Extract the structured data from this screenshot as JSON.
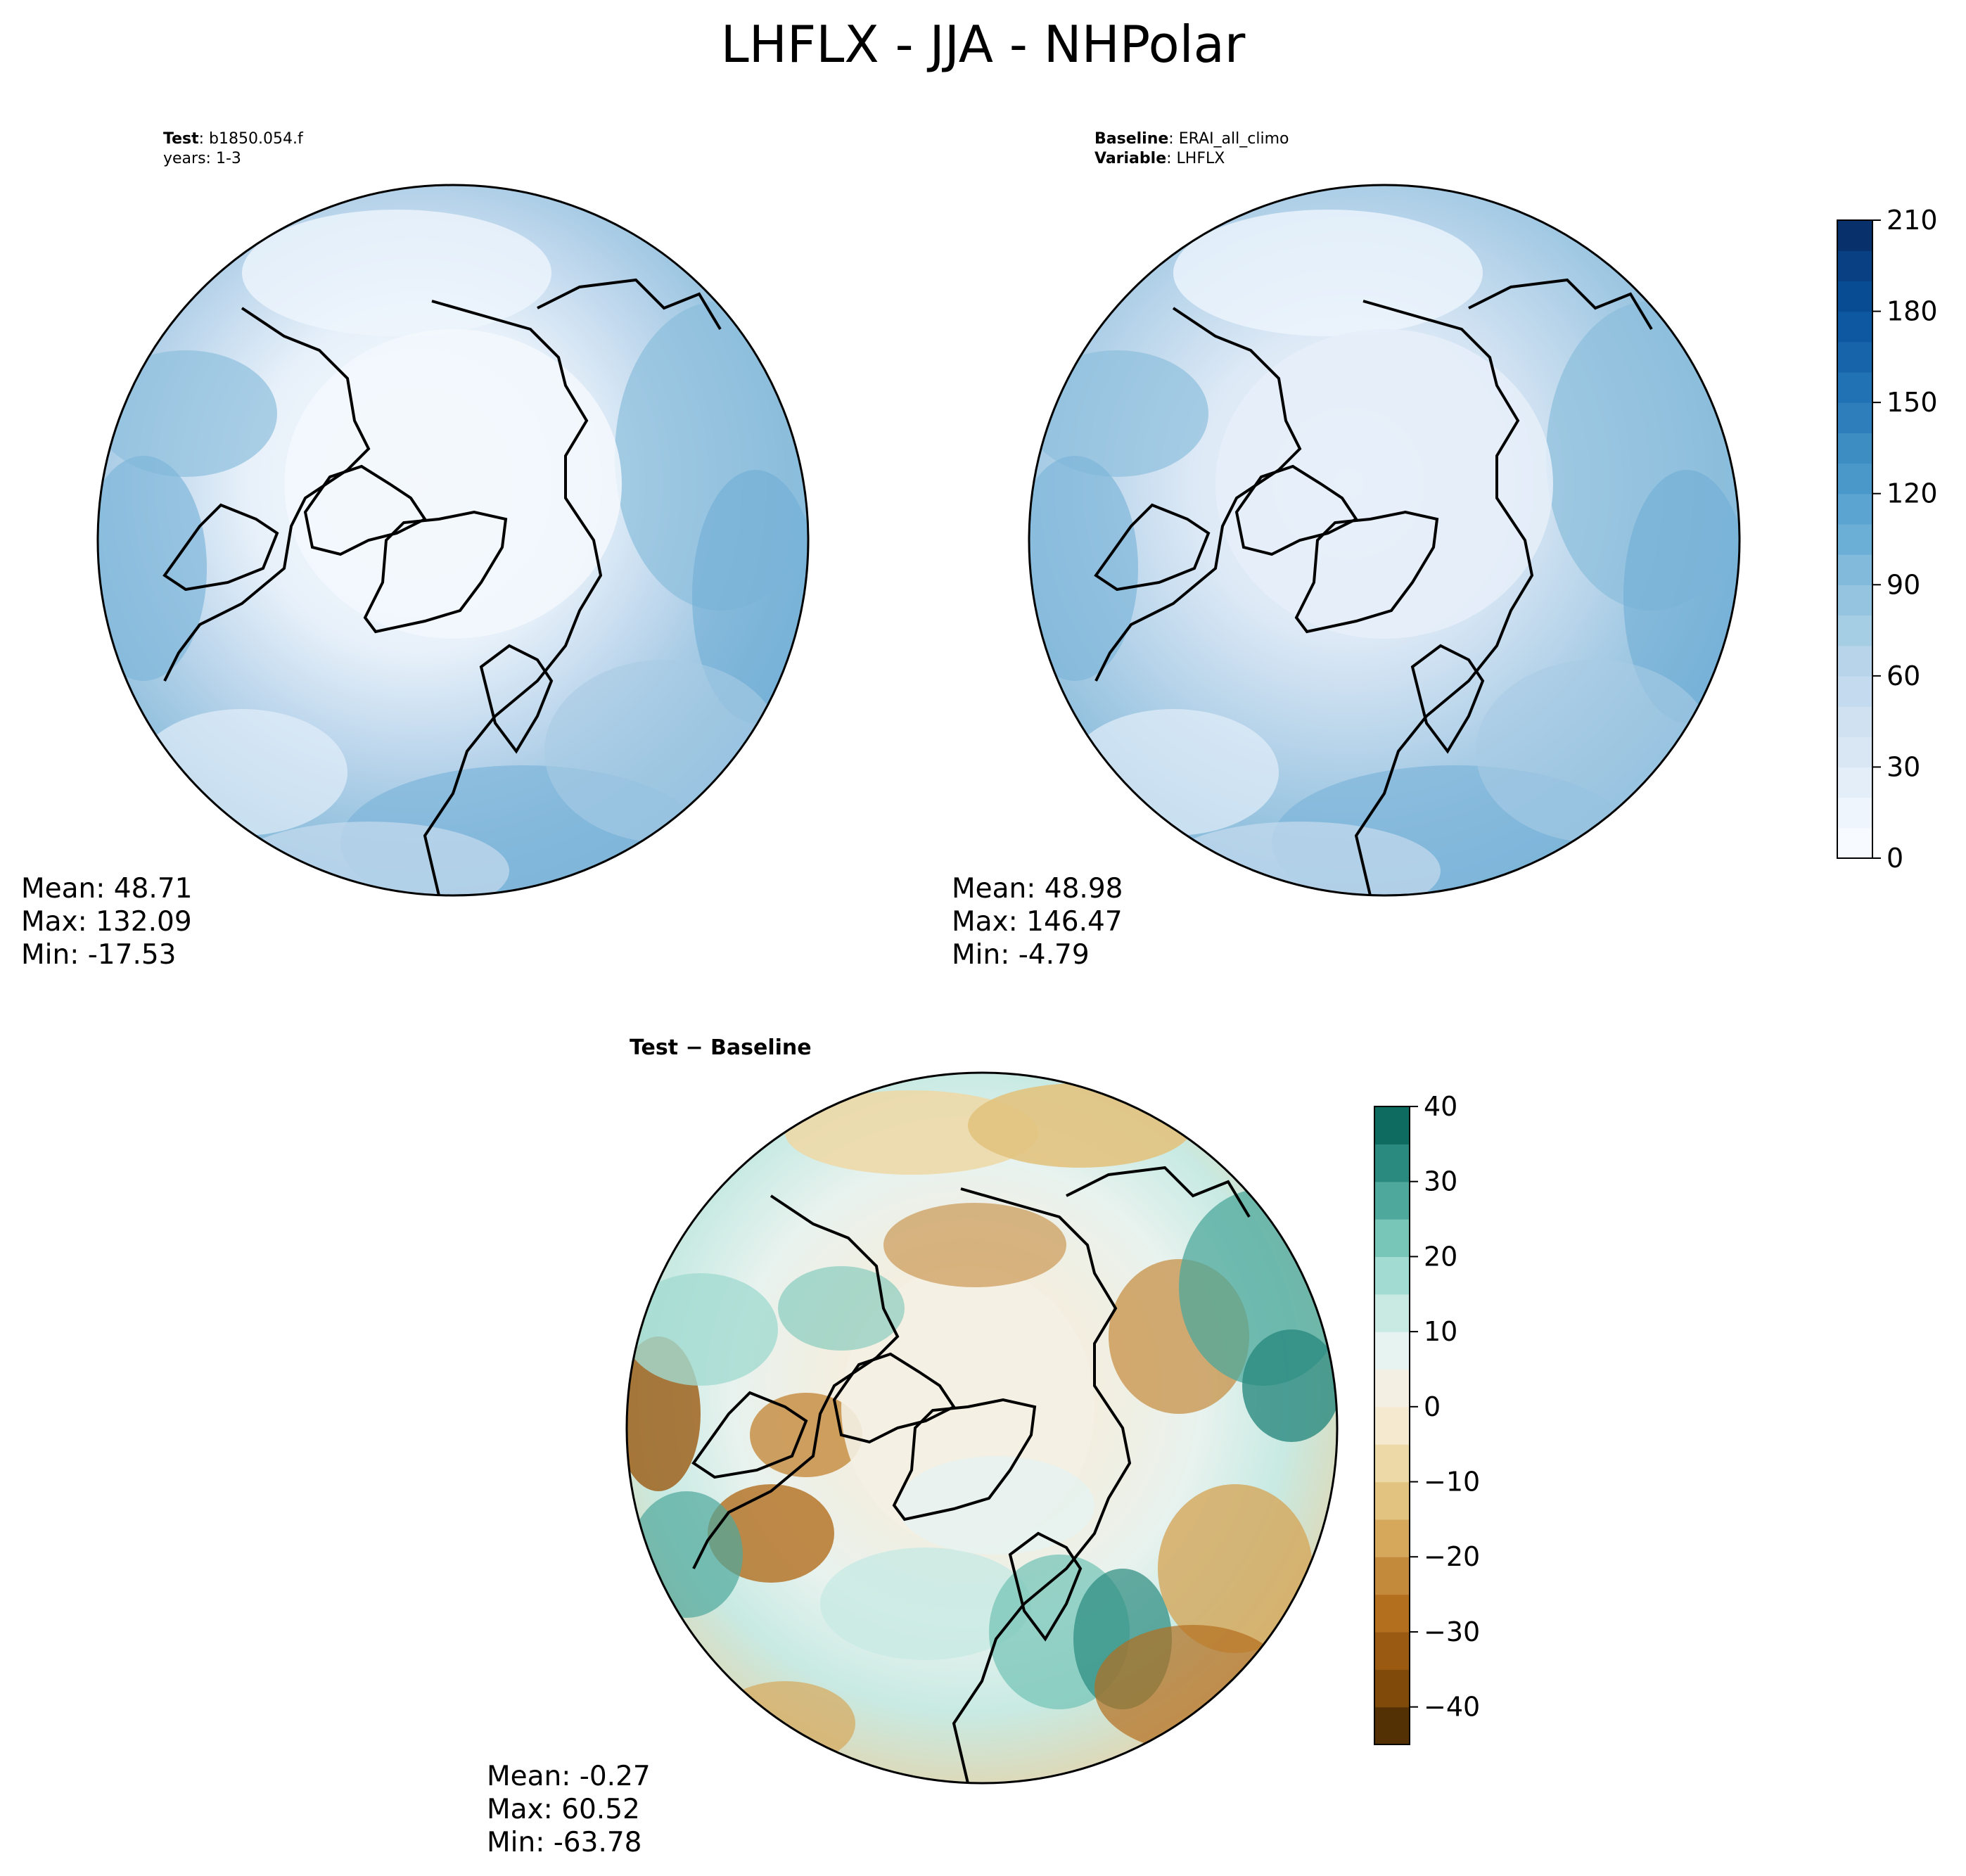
{
  "figure": {
    "title": "LHFLX - JJA - NHPolar"
  },
  "panels": {
    "test": {
      "line1_key": "Test",
      "line1_sep": ":",
      "line1_val": "b1850.054.f",
      "line2": "years: 1-3",
      "mean": "Mean: 48.71",
      "max": "Max: 132.09",
      "min": "Min: -17.53"
    },
    "baseline": {
      "line1_key": "Baseline",
      "line1_sep": ":",
      "line1_val": "ERAI_all_climo",
      "line2_key": "Variable",
      "line2_sep": ":",
      "line2_val": "LHFLX",
      "mean": "Mean: 48.98",
      "max": "Max: 146.47",
      "min": "Min: -4.79"
    },
    "diff": {
      "title": "Test − Baseline",
      "mean": "Mean: -0.27",
      "max": "Max: 60.52",
      "min": "Min: -63.78"
    }
  },
  "chart_data": [
    {
      "type": "heatmap",
      "title": "Test: b1850.054.f",
      "subtitle": "years: 1-3",
      "projection": "north polar stereographic",
      "colormap": "Blues",
      "stats": {
        "mean": 48.71,
        "max": 132.09,
        "min": -17.53
      }
    },
    {
      "type": "heatmap",
      "title": "Baseline: ERAI_all_climo",
      "subtitle": "Variable: LHFLX",
      "projection": "north polar stereographic",
      "colormap": "Blues",
      "stats": {
        "mean": 48.98,
        "max": 146.47,
        "min": -4.79
      },
      "colorbar": {
        "range": [
          0,
          210
        ],
        "ticks": [
          0,
          30,
          60,
          90,
          120,
          150,
          180,
          210
        ],
        "tick_labels": [
          "0",
          "30",
          "60",
          "90",
          "120",
          "150",
          "180",
          "210"
        ],
        "levels": [
          0,
          10,
          20,
          30,
          40,
          50,
          60,
          70,
          80,
          90,
          100,
          110,
          120,
          130,
          140,
          150,
          160,
          170,
          180,
          190,
          200,
          210
        ],
        "colors": [
          "#f7fbff",
          "#eef5fc",
          "#e3eef9",
          "#d9e7f5",
          "#d0e1f2",
          "#c4daee",
          "#b7d4ea",
          "#a5cde3",
          "#94c4df",
          "#82badb",
          "#6baed6",
          "#5ba3d0",
          "#4a98c9",
          "#3d8dc3",
          "#2f7ebc",
          "#2171b5",
          "#1764ab",
          "#0d58a1",
          "#084d94",
          "#084083",
          "#08306b"
        ]
      }
    },
    {
      "type": "heatmap",
      "title": "Test − Baseline",
      "projection": "north polar stereographic",
      "colormap": "BrBG",
      "stats": {
        "mean": -0.27,
        "max": 60.52,
        "min": -63.78
      },
      "colorbar": {
        "range": [
          -45,
          40
        ],
        "ticks": [
          -40,
          -30,
          -20,
          -10,
          0,
          10,
          20,
          30,
          40
        ],
        "tick_labels": [
          "−40",
          "−30",
          "−20",
          "−10",
          "0",
          "10",
          "20",
          "30",
          "40"
        ],
        "levels": [
          -45,
          -40,
          -35,
          -30,
          -25,
          -20,
          -15,
          -10,
          -5,
          0,
          5,
          10,
          15,
          20,
          25,
          30,
          35,
          40
        ],
        "colors": [
          "#543005",
          "#7f4a0a",
          "#9b5a12",
          "#b36e1e",
          "#c48a3c",
          "#d5a85b",
          "#e2c380",
          "#edd9a8",
          "#f5ead0",
          "#f4efe3",
          "#e6f3f0",
          "#c8eae3",
          "#a2dbd1",
          "#78c6b8",
          "#4ea89c",
          "#2a8a7f",
          "#0d6b60"
        ]
      }
    }
  ]
}
